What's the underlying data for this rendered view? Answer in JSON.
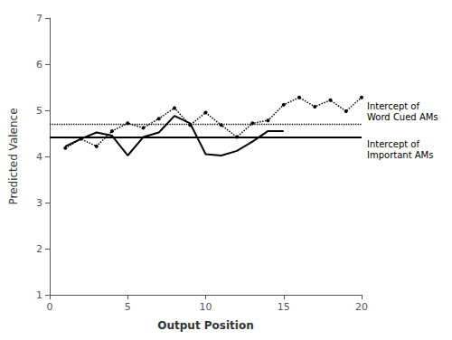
{
  "chart_data": {
    "type": "line",
    "xlabel": "Output Position",
    "ylabel": "Predicted Valence",
    "x": [
      1,
      2,
      3,
      4,
      5,
      6,
      7,
      8,
      9,
      10,
      11,
      12,
      13,
      14,
      15,
      16,
      17,
      18,
      19,
      20
    ],
    "series": [
      {
        "color": "#000000",
        "line_style": "dotted",
        "marker": "dot",
        "values": [
          4.18,
          4.38,
          4.22,
          4.55,
          4.72,
          4.62,
          4.82,
          5.05,
          4.68,
          4.95,
          4.68,
          4.42,
          4.72,
          4.78,
          5.12,
          5.28,
          5.08,
          5.22,
          4.98,
          5.28
        ]
      },
      {
        "color": "#000000",
        "line_style": "solid",
        "marker": "none",
        "values": [
          4.22,
          4.38,
          4.52,
          4.45,
          4.02,
          4.42,
          4.52,
          4.88,
          4.72,
          4.05,
          4.02,
          4.12,
          4.32,
          4.55,
          4.55,
          null,
          null,
          null,
          null,
          null
        ]
      }
    ],
    "annotations": [
      {
        "y": 4.7,
        "text": "Intercept of\nWord Cued AMs",
        "line_style": "dotted",
        "color": "#000000"
      },
      {
        "y": 4.42,
        "text": "Intercept of\nImportant AMs",
        "line_style": "solid",
        "color": "#000000"
      }
    ],
    "xlim": [
      0,
      20
    ],
    "ylim": [
      1,
      7
    ],
    "xticks": [
      0,
      5,
      10,
      15,
      20
    ],
    "yticks": [
      1,
      2,
      3,
      4,
      5,
      6,
      7
    ],
    "grid": false
  }
}
